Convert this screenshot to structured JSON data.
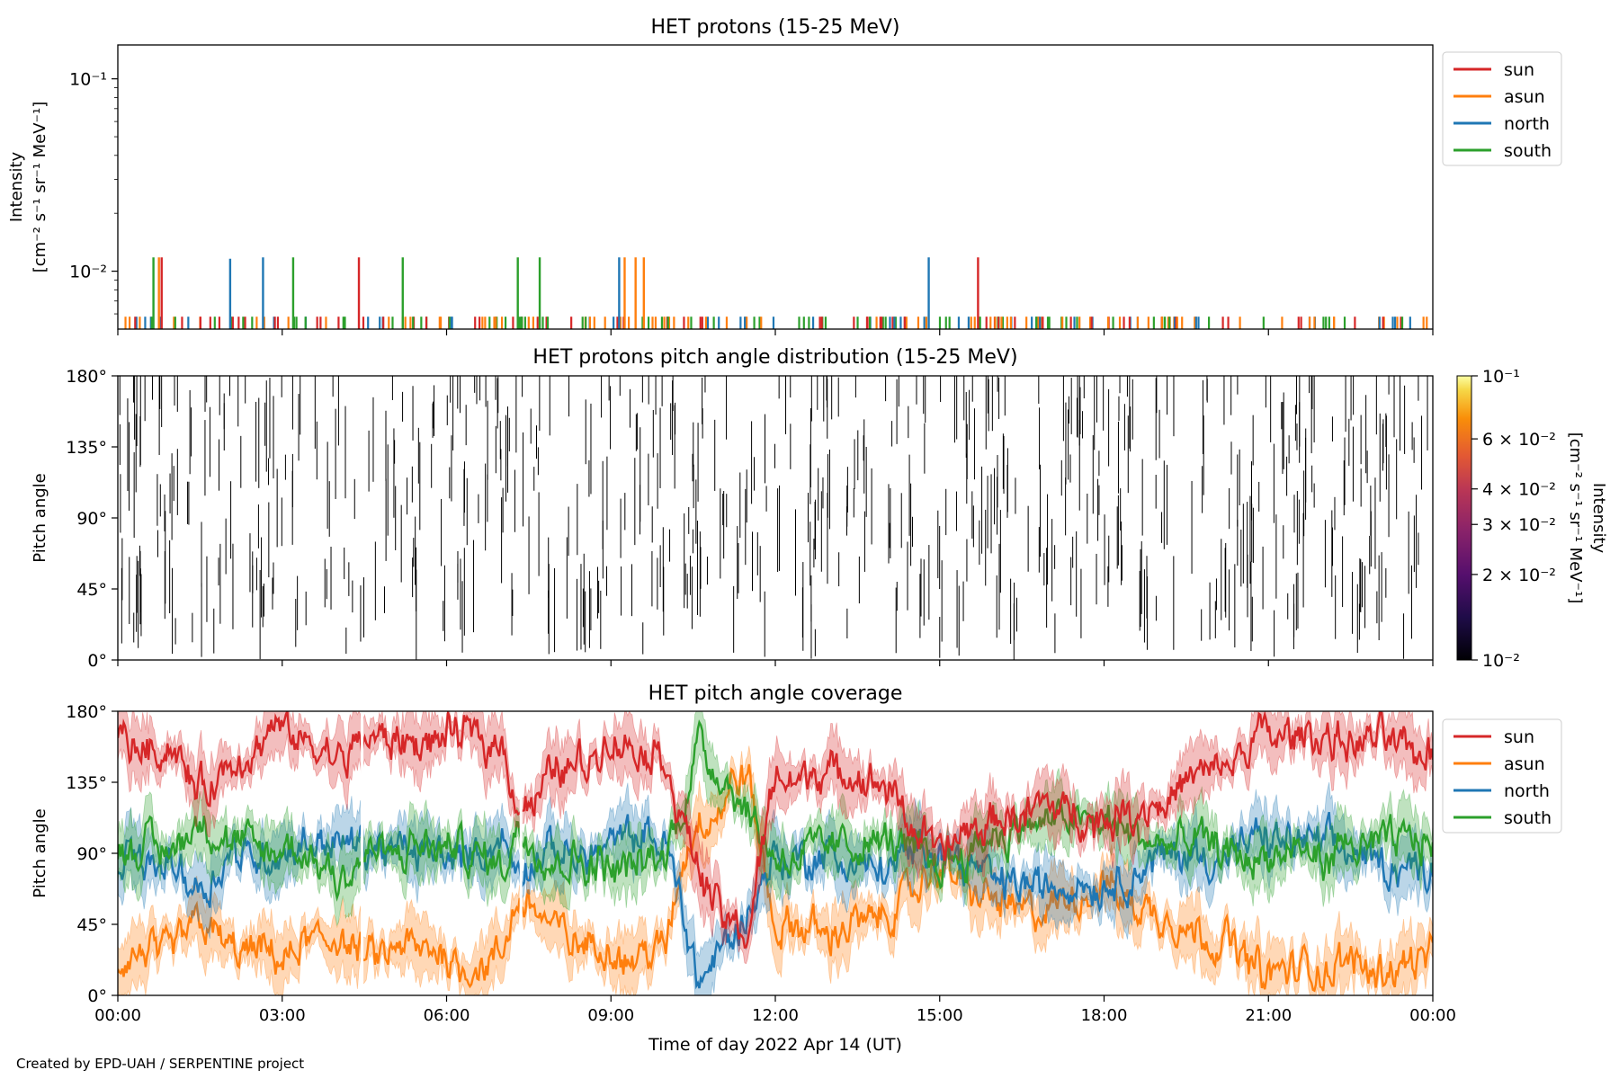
{
  "footer": "Created by EPD-UAH / SERPENTINE project",
  "xlabel": "Time of day 2022 Apr 14 (UT)",
  "xticks": [
    "00:00",
    "03:00",
    "06:00",
    "09:00",
    "12:00",
    "15:00",
    "18:00",
    "21:00",
    "00:00"
  ],
  "colors": {
    "sun": "#d62728",
    "asun": "#ff7f0e",
    "north": "#1f77b4",
    "south": "#2ca02c"
  },
  "chart_data": [
    {
      "type": "line",
      "title": "HET protons (15-25 MeV)",
      "ylabel_line1": "Intensity",
      "ylabel_line2": "[cm⁻² s⁻¹ sr⁻¹ MeV⁻¹]",
      "yscale": "log",
      "ylim": [
        0.005,
        0.15
      ],
      "yticks": [
        {
          "value": 0.1,
          "label": "10⁻¹"
        },
        {
          "value": 0.01,
          "label": "10⁻²"
        }
      ],
      "legend": {
        "placement": "outside-top-right",
        "entries": [
          "sun",
          "asun",
          "north",
          "south"
        ]
      },
      "baseline": 0.0058,
      "spikes": [
        {
          "series": "south",
          "x": 0.65,
          "y": 0.0118
        },
        {
          "series": "asun",
          "x": 0.75,
          "y": 0.0118
        },
        {
          "series": "red",
          "x": 0.8,
          "y": 0.0118
        },
        {
          "series": "north",
          "x": 2.05,
          "y": 0.0116
        },
        {
          "series": "north",
          "x": 2.65,
          "y": 0.0118
        },
        {
          "series": "south",
          "x": 3.2,
          "y": 0.0118
        },
        {
          "series": "sun",
          "x": 4.4,
          "y": 0.0118
        },
        {
          "series": "south",
          "x": 5.2,
          "y": 0.0118
        },
        {
          "series": "south",
          "x": 7.3,
          "y": 0.0118
        },
        {
          "series": "south",
          "x": 7.7,
          "y": 0.0118
        },
        {
          "series": "north",
          "x": 9.15,
          "y": 0.0118
        },
        {
          "series": "asun",
          "x": 9.25,
          "y": 0.0118
        },
        {
          "series": "asun",
          "x": 9.45,
          "y": 0.0118
        },
        {
          "series": "asun",
          "x": 9.6,
          "y": 0.0118
        },
        {
          "series": "north",
          "x": 14.8,
          "y": 0.0118
        },
        {
          "series": "sun",
          "x": 15.7,
          "y": 0.0118
        }
      ]
    },
    {
      "type": "heatmap",
      "title": "HET protons pitch angle distribution (15-25 MeV)",
      "ylabel": "Pitch angle",
      "ylim": [
        0,
        180
      ],
      "yticks": [
        "0°",
        "45°",
        "90°",
        "135°",
        "180°"
      ],
      "colorbar": {
        "label_line1": "Intensity",
        "label_line2": "[cm⁻² s⁻¹ sr⁻¹ MeV⁻¹]",
        "range": [
          0.01,
          0.1
        ],
        "ticks": [
          {
            "value": 0.1,
            "label": "10⁻¹"
          },
          {
            "value": 0.06,
            "label": "6 × 10⁻²"
          },
          {
            "value": 0.04,
            "label": "4 × 10⁻²"
          },
          {
            "value": 0.03,
            "label": "3 × 10⁻²"
          },
          {
            "value": 0.02,
            "label": "2 × 10⁻²"
          },
          {
            "value": 0.01,
            "label": "10⁻²"
          }
        ],
        "colormap": "inferno"
      }
    },
    {
      "type": "area",
      "title": "HET pitch angle coverage",
      "ylabel": "Pitch angle",
      "ylim": [
        0,
        180
      ],
      "yticks": [
        "0°",
        "45°",
        "90°",
        "135°",
        "180°"
      ],
      "legend": {
        "placement": "outside-top-right",
        "entries": [
          "sun",
          "asun",
          "north",
          "south"
        ]
      },
      "x_hours": [
        0,
        1,
        1.5,
        2,
        3,
        4,
        4.5,
        5,
        6,
        7,
        7.3,
        7.6,
        8,
        9,
        10,
        10.3,
        10.6,
        11,
        11.5,
        12,
        13,
        14,
        15,
        16,
        17,
        18,
        19,
        20,
        21,
        22,
        23,
        24
      ],
      "series": [
        {
          "name": "sun",
          "values": [
            160,
            160,
            130,
            140,
            165,
            145,
            165,
            160,
            160,
            165,
            125,
            120,
            145,
            160,
            150,
            110,
            80,
            50,
            40,
            140,
            140,
            130,
            90,
            110,
            120,
            110,
            125,
            140,
            165,
            165,
            160,
            155
          ]
        },
        {
          "name": "asun",
          "values": [
            20,
            25,
            55,
            30,
            20,
            40,
            20,
            25,
            25,
            20,
            55,
            60,
            40,
            25,
            30,
            80,
            110,
            120,
            140,
            40,
            40,
            50,
            80,
            60,
            50,
            70,
            50,
            40,
            15,
            15,
            20,
            25
          ]
        },
        {
          "name": "north",
          "values": [
            85,
            85,
            70,
            90,
            90,
            100,
            90,
            90,
            90,
            95,
            75,
            80,
            90,
            95,
            95,
            60,
            10,
            30,
            50,
            90,
            85,
            80,
            95,
            75,
            70,
            70,
            85,
            90,
            95,
            95,
            85,
            80
          ]
        },
        {
          "name": "south",
          "values": [
            95,
            95,
            115,
            90,
            90,
            80,
            90,
            90,
            90,
            85,
            105,
            100,
            90,
            85,
            85,
            120,
            165,
            145,
            120,
            90,
            95,
            100,
            85,
            105,
            110,
            110,
            95,
            90,
            85,
            85,
            95,
            100
          ]
        }
      ]
    }
  ]
}
